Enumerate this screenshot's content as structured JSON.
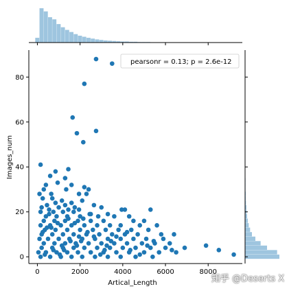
{
  "chart_data": {
    "type": "scatter",
    "kind": "jointplot",
    "xlabel": "Artical_Length",
    "ylabel": "Images_num",
    "xlim": [
      -400,
      9600
    ],
    "ylim": [
      -3,
      92
    ],
    "xticks": [
      0,
      2000,
      4000,
      6000,
      8000
    ],
    "yticks": [
      0,
      20,
      40,
      60,
      80
    ],
    "legend": {
      "text": "pearsonr = 0.13; p = 2.6e-12",
      "placement": "top-right"
    },
    "marker_color": "#1f77b4",
    "hist_color": "#9ec5df",
    "grid": false,
    "points": [
      [
        2750,
        88
      ],
      [
        3500,
        86
      ],
      [
        2200,
        77
      ],
      [
        1650,
        62
      ],
      [
        1850,
        55
      ],
      [
        2750,
        56
      ],
      [
        2150,
        51
      ],
      [
        150,
        41
      ],
      [
        1450,
        39
      ],
      [
        850,
        38
      ],
      [
        600,
        36
      ],
      [
        1300,
        35
      ],
      [
        950,
        33
      ],
      [
        400,
        32
      ],
      [
        1600,
        32
      ],
      [
        300,
        30
      ],
      [
        1350,
        30
      ],
      [
        2200,
        31
      ],
      [
        2400,
        30
      ],
      [
        650,
        28
      ],
      [
        100,
        28
      ],
      [
        1950,
        28
      ],
      [
        2300,
        28
      ],
      [
        250,
        26
      ],
      [
        700,
        26
      ],
      [
        1150,
        25
      ],
      [
        2100,
        25
      ],
      [
        850,
        24
      ],
      [
        1600,
        24
      ],
      [
        450,
        23
      ],
      [
        1300,
        23
      ],
      [
        200,
        22
      ],
      [
        1000,
        22
      ],
      [
        1750,
        22
      ],
      [
        2650,
        23
      ],
      [
        550,
        21
      ],
      [
        1450,
        21
      ],
      [
        1950,
        21
      ],
      [
        3000,
        22
      ],
      [
        3950,
        21
      ],
      [
        4100,
        21
      ],
      [
        5300,
        21
      ],
      [
        150,
        20
      ],
      [
        750,
        20
      ],
      [
        1200,
        20
      ],
      [
        1700,
        20
      ],
      [
        2500,
        19
      ],
      [
        3300,
        19
      ],
      [
        400,
        18
      ],
      [
        900,
        18
      ],
      [
        1400,
        18
      ],
      [
        2000,
        18
      ],
      [
        2850,
        18
      ],
      [
        3600,
        18
      ],
      [
        4300,
        18
      ],
      [
        300,
        16
      ],
      [
        800,
        16
      ],
      [
        1300,
        16
      ],
      [
        1900,
        16
      ],
      [
        2500,
        16
      ],
      [
        3100,
        16
      ],
      [
        4500,
        16
      ],
      [
        5000,
        16
      ],
      [
        150,
        14
      ],
      [
        600,
        14
      ],
      [
        1100,
        14
      ],
      [
        1600,
        14
      ],
      [
        2200,
        14
      ],
      [
        2800,
        14
      ],
      [
        3400,
        14
      ],
      [
        3900,
        14
      ],
      [
        4800,
        14
      ],
      [
        5600,
        14
      ],
      [
        350,
        12
      ],
      [
        850,
        12
      ],
      [
        1400,
        12
      ],
      [
        2000,
        12
      ],
      [
        2600,
        12
      ],
      [
        3200,
        12
      ],
      [
        3800,
        12
      ],
      [
        4400,
        12
      ],
      [
        5200,
        12
      ],
      [
        200,
        10
      ],
      [
        700,
        10
      ],
      [
        1200,
        10
      ],
      [
        1700,
        10
      ],
      [
        2300,
        10
      ],
      [
        2900,
        10
      ],
      [
        3500,
        10
      ],
      [
        4100,
        10
      ],
      [
        4700,
        10
      ],
      [
        5800,
        10
      ],
      [
        6400,
        10
      ],
      [
        100,
        8
      ],
      [
        500,
        8
      ],
      [
        1000,
        8
      ],
      [
        1500,
        8
      ],
      [
        2100,
        8
      ],
      [
        2700,
        8
      ],
      [
        3300,
        8
      ],
      [
        3900,
        8
      ],
      [
        4500,
        8
      ],
      [
        5100,
        8
      ],
      [
        5900,
        8
      ],
      [
        300,
        6
      ],
      [
        800,
        6
      ],
      [
        1300,
        6
      ],
      [
        1800,
        6
      ],
      [
        2400,
        6
      ],
      [
        3000,
        6
      ],
      [
        3600,
        6
      ],
      [
        4200,
        6
      ],
      [
        4900,
        6
      ],
      [
        5500,
        6
      ],
      [
        6200,
        6
      ],
      [
        6900,
        4
      ],
      [
        7900,
        5
      ],
      [
        8500,
        3
      ],
      [
        9200,
        1
      ],
      [
        200,
        4
      ],
      [
        700,
        4
      ],
      [
        1200,
        4
      ],
      [
        1700,
        4
      ],
      [
        2200,
        4
      ],
      [
        2800,
        4
      ],
      [
        3400,
        4
      ],
      [
        4000,
        4
      ],
      [
        4600,
        4
      ],
      [
        5300,
        4
      ],
      [
        6000,
        4
      ],
      [
        50,
        2
      ],
      [
        400,
        2
      ],
      [
        900,
        2
      ],
      [
        1400,
        2
      ],
      [
        1900,
        2
      ],
      [
        2500,
        2
      ],
      [
        3100,
        2
      ],
      [
        3700,
        2
      ],
      [
        4300,
        2
      ],
      [
        5000,
        2
      ],
      [
        5700,
        2
      ],
      [
        6500,
        2
      ],
      [
        150,
        0
      ],
      [
        600,
        0
      ],
      [
        1100,
        0
      ],
      [
        1600,
        0
      ],
      [
        2100,
        0
      ],
      [
        2700,
        0
      ],
      [
        3300,
        0
      ],
      [
        3900,
        0
      ],
      [
        4600,
        0
      ],
      [
        5400,
        0
      ],
      [
        350,
        1
      ],
      [
        750,
        3
      ],
      [
        1150,
        5
      ],
      [
        1550,
        7
      ],
      [
        1950,
        9
      ],
      [
        2350,
        11
      ],
      [
        450,
        13
      ],
      [
        950,
        15
      ],
      [
        1450,
        17
      ],
      [
        550,
        19
      ],
      [
        1050,
        1
      ],
      [
        1250,
        3
      ],
      [
        1850,
        5
      ],
      [
        2050,
        7
      ],
      [
        2650,
        9
      ],
      [
        250,
        11
      ],
      [
        650,
        13
      ],
      [
        1750,
        15
      ],
      [
        2150,
        17
      ],
      [
        2450,
        19
      ],
      [
        2950,
        1
      ],
      [
        3150,
        3
      ],
      [
        3250,
        5
      ],
      [
        3450,
        7
      ],
      [
        3700,
        9
      ],
      [
        4200,
        11
      ],
      [
        4350,
        3
      ],
      [
        4800,
        1
      ],
      [
        5150,
        5
      ],
      [
        5450,
        7
      ],
      [
        6300,
        3
      ]
    ],
    "x_hist": {
      "bin_start": -100,
      "bin_width": 200,
      "counts": [
        18,
        130,
        118,
        96,
        88,
        70,
        58,
        48,
        40,
        32,
        26,
        22,
        18,
        15,
        12,
        10,
        8,
        7,
        6,
        5,
        4,
        4,
        3,
        3,
        2,
        2,
        2,
        1,
        1,
        1,
        1,
        1,
        1,
        1,
        0,
        1,
        0,
        1,
        1,
        0,
        1,
        0,
        0,
        1,
        0,
        0,
        1
      ]
    },
    "y_hist": {
      "bin_start": -1,
      "bin_width": 2,
      "counts": [
        150,
        140,
        96,
        68,
        45,
        30,
        22,
        16,
        12,
        9,
        7,
        6,
        4,
        3,
        3,
        2,
        2,
        2,
        1,
        1,
        1,
        1,
        1,
        0,
        0,
        0,
        1,
        1,
        0,
        0,
        0,
        1,
        0,
        0,
        0,
        0,
        0,
        1,
        0,
        0,
        0,
        1,
        0,
        1,
        0
      ]
    }
  },
  "watermark": "知乎 @Deserts X"
}
